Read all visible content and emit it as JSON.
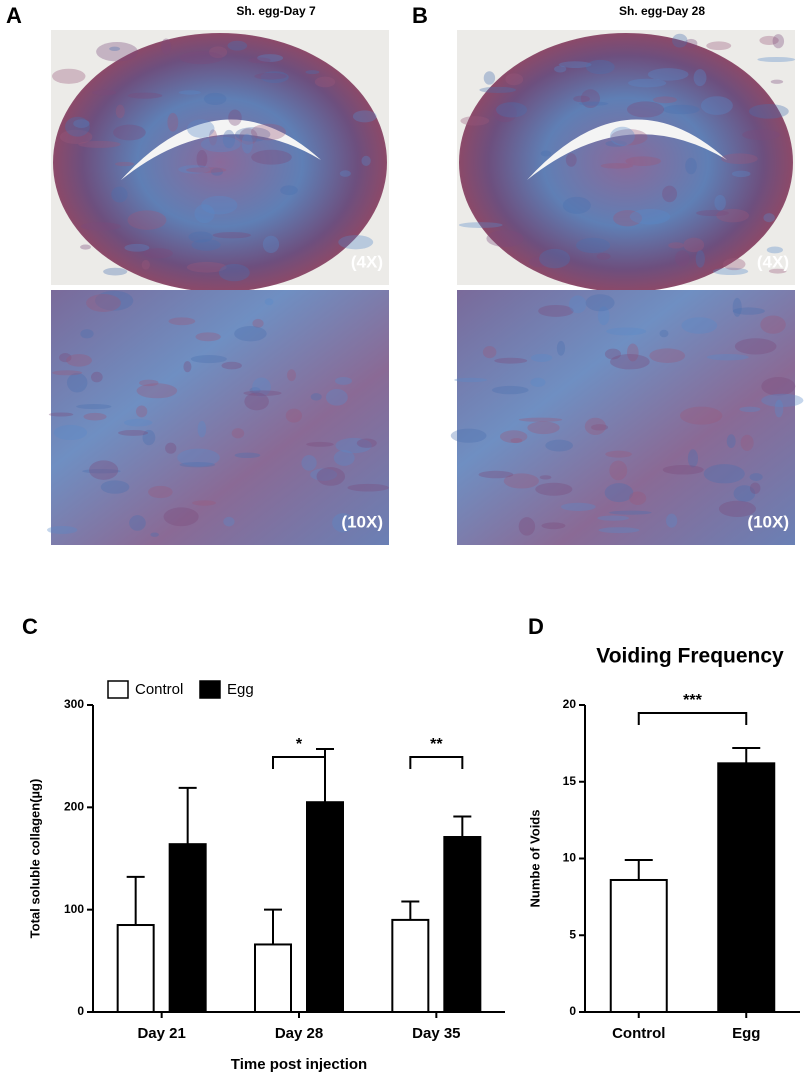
{
  "panels": [
    {
      "label": "A",
      "title": "Sh. egg-Day 7",
      "images": [
        "(4X)",
        "(10X)"
      ]
    },
    {
      "label": "B",
      "title": "Sh. egg-Day 28",
      "images": [
        "(4X)",
        "(10X)"
      ]
    }
  ],
  "chart_data": [
    {
      "type": "bar",
      "panel_label": "C",
      "y_label": "Total soluble collagen(µg)",
      "x_label": "Time post injection",
      "categories": [
        "Day 21",
        "Day 28",
        "Day 35"
      ],
      "series": [
        {
          "name": "Control",
          "color": "#ffffff",
          "values": [
            85,
            66,
            90
          ],
          "errors": [
            47,
            34,
            18
          ]
        },
        {
          "name": "Egg",
          "color": "#000000",
          "values": [
            164,
            205,
            171
          ],
          "errors": [
            55,
            52,
            20
          ]
        }
      ],
      "ylim": [
        0,
        300
      ],
      "yticks": [
        0,
        100,
        200,
        300
      ],
      "annotations": [
        {
          "text": "*",
          "category": "Day 28"
        },
        {
          "text": "**",
          "category": "Day 35"
        }
      ]
    },
    {
      "type": "bar",
      "panel_label": "D",
      "title": "Voiding Frequency",
      "y_label": "Numbe of Voids",
      "categories": [
        "Control",
        "Egg"
      ],
      "colors": [
        "#ffffff",
        "#000000"
      ],
      "values": [
        8.6,
        16.2
      ],
      "errors": [
        1.3,
        1.0
      ],
      "ylim": [
        0,
        20
      ],
      "yticks": [
        0,
        5,
        10,
        15,
        20
      ],
      "annotations": [
        {
          "text": "***"
        }
      ]
    }
  ]
}
